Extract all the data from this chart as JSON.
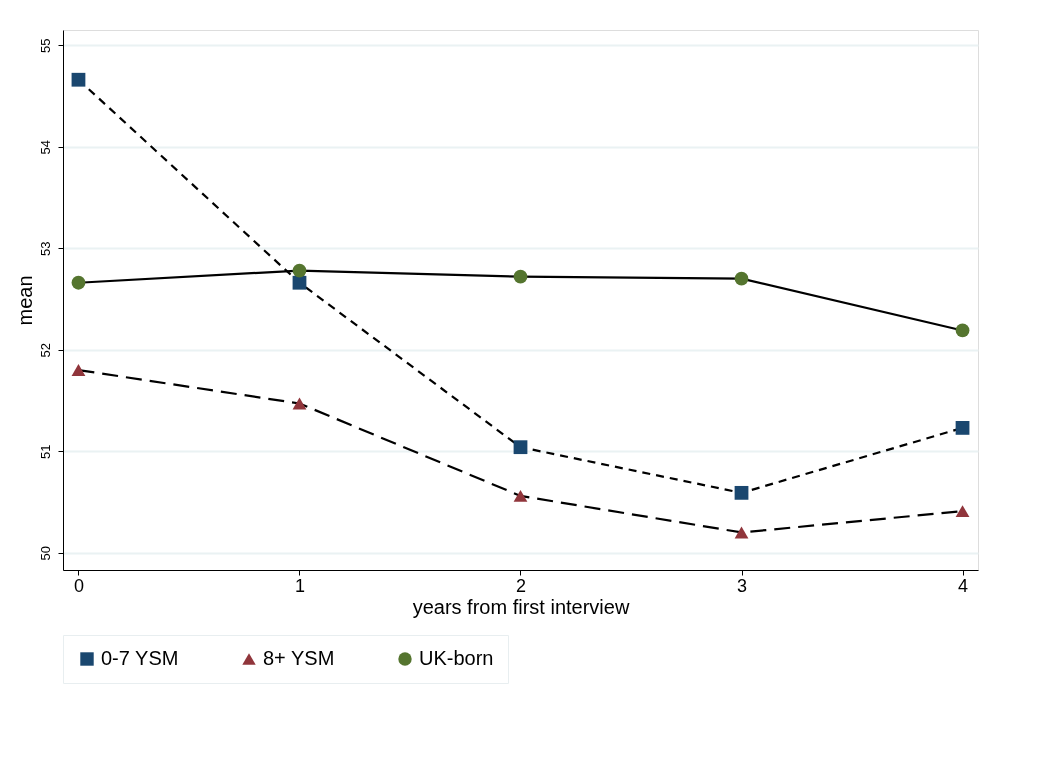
{
  "chart_data": {
    "type": "line",
    "xlabel": "years from first interview",
    "ylabel": "mean",
    "x": [
      0,
      1,
      2,
      3,
      4
    ],
    "series": [
      {
        "name": "0-7 YSM",
        "color": "#1a476f",
        "marker": "square",
        "line_style": "dashed",
        "values": [
          54.66,
          52.66,
          51.04,
          50.59,
          51.23
        ]
      },
      {
        "name": "8+ YSM",
        "color": "#90353b",
        "marker": "triangle",
        "line_style": "dashed",
        "values": [
          51.8,
          51.47,
          50.56,
          50.2,
          50.41
        ]
      },
      {
        "name": "UK-born",
        "color": "#55752f",
        "marker": "circle",
        "line_style": "solid",
        "values": [
          52.66,
          52.78,
          52.72,
          52.7,
          52.19
        ]
      }
    ],
    "xlim": [
      -0.07,
      4.07
    ],
    "xticks": [
      0,
      1,
      2,
      3,
      4
    ],
    "ylim": [
      49.83,
      55.15
    ],
    "yticks": [
      50,
      51,
      52,
      53,
      54,
      55
    ],
    "grid": "y",
    "legend": "bottom"
  }
}
